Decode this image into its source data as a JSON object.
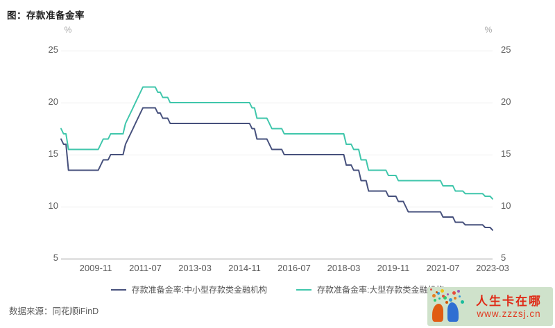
{
  "title": "图：存款准备金率",
  "source": "数据来源：同花顺iFinD",
  "axis": {
    "unit_left": "%",
    "unit_right": "%"
  },
  "colors": {
    "grid": "#ececec",
    "axis_line": "#8c8c8c",
    "tick_text": "#595959",
    "series_small_medium": "#46507c",
    "series_large": "#3fc6ab"
  },
  "legend": [
    {
      "label": "存款准备金率:中小型存款类金融机构",
      "color": "#46507c"
    },
    {
      "label": "存款准备金率:大型存款类金融机构",
      "color": "#3fc6ab"
    }
  ],
  "watermark": {
    "line1": "人生卡在哪",
    "line2": "www.zzzsj.cn",
    "bg_color": "#cfe2cb",
    "text_color": "#df2b17",
    "url_color": "#e13a20",
    "dot_colors": [
      "#e74c3c",
      "#3498db",
      "#2ecc71",
      "#f1c40f",
      "#9b59b6",
      "#e67e22",
      "#1abc9c",
      "#d35400"
    ]
  },
  "chart_data": {
    "type": "line",
    "title": "存款准备金率",
    "xlabel": "",
    "ylabel": "%",
    "ylim": [
      5,
      25
    ],
    "yticks": [
      5,
      10,
      15,
      20,
      25
    ],
    "grid": true,
    "legend_position": "bottom",
    "x_tick_indices": [
      14,
      34,
      54,
      74,
      94,
      114,
      134,
      154,
      174
    ],
    "x_tick_labels": [
      "2009-11",
      "2011-07",
      "2013-03",
      "2014-11",
      "2016-07",
      "2018-03",
      "2019-11",
      "2021-07",
      "2023-03"
    ],
    "categories": [
      "2008-09",
      "2008-10",
      "2008-11",
      "2008-12",
      "2009-01",
      "2009-02",
      "2009-03",
      "2009-04",
      "2009-05",
      "2009-06",
      "2009-07",
      "2009-08",
      "2009-09",
      "2009-10",
      "2009-11",
      "2009-12",
      "2010-01",
      "2010-02",
      "2010-03",
      "2010-04",
      "2010-05",
      "2010-06",
      "2010-07",
      "2010-08",
      "2010-09",
      "2010-10",
      "2010-11",
      "2010-12",
      "2011-01",
      "2011-02",
      "2011-03",
      "2011-04",
      "2011-05",
      "2011-06",
      "2011-07",
      "2011-08",
      "2011-09",
      "2011-10",
      "2011-11",
      "2011-12",
      "2012-01",
      "2012-02",
      "2012-03",
      "2012-04",
      "2012-05",
      "2012-06",
      "2012-07",
      "2012-08",
      "2012-09",
      "2012-10",
      "2012-11",
      "2012-12",
      "2013-01",
      "2013-02",
      "2013-03",
      "2013-04",
      "2013-05",
      "2013-06",
      "2013-07",
      "2013-08",
      "2013-09",
      "2013-10",
      "2013-11",
      "2013-12",
      "2014-01",
      "2014-02",
      "2014-03",
      "2014-04",
      "2014-05",
      "2014-06",
      "2014-07",
      "2014-08",
      "2014-09",
      "2014-10",
      "2014-11",
      "2014-12",
      "2015-01",
      "2015-02",
      "2015-03",
      "2015-04",
      "2015-05",
      "2015-06",
      "2015-07",
      "2015-08",
      "2015-09",
      "2015-10",
      "2015-11",
      "2015-12",
      "2016-01",
      "2016-02",
      "2016-03",
      "2016-04",
      "2016-05",
      "2016-06",
      "2016-07",
      "2016-08",
      "2016-09",
      "2016-10",
      "2016-11",
      "2016-12",
      "2017-01",
      "2017-02",
      "2017-03",
      "2017-04",
      "2017-05",
      "2017-06",
      "2017-07",
      "2017-08",
      "2017-09",
      "2017-10",
      "2017-11",
      "2017-12",
      "2018-01",
      "2018-02",
      "2018-03",
      "2018-04",
      "2018-05",
      "2018-06",
      "2018-07",
      "2018-08",
      "2018-09",
      "2018-10",
      "2018-11",
      "2018-12",
      "2019-01",
      "2019-02",
      "2019-03",
      "2019-04",
      "2019-05",
      "2019-06",
      "2019-07",
      "2019-08",
      "2019-09",
      "2019-10",
      "2019-11",
      "2019-12",
      "2020-01",
      "2020-02",
      "2020-03",
      "2020-04",
      "2020-05",
      "2020-06",
      "2020-07",
      "2020-08",
      "2020-09",
      "2020-10",
      "2020-11",
      "2020-12",
      "2021-01",
      "2021-02",
      "2021-03",
      "2021-04",
      "2021-05",
      "2021-06",
      "2021-07",
      "2021-08",
      "2021-09",
      "2021-10",
      "2021-11",
      "2021-12",
      "2022-01",
      "2022-02",
      "2022-03",
      "2022-04",
      "2022-05",
      "2022-06",
      "2022-07",
      "2022-08",
      "2022-09",
      "2022-10",
      "2022-11",
      "2022-12",
      "2023-01",
      "2023-02",
      "2023-03"
    ],
    "series": [
      {
        "name": "存款准备金率:中小型存款类金融机构",
        "color": "#46507c",
        "values": [
          16.5,
          16,
          16,
          13.5,
          13.5,
          13.5,
          13.5,
          13.5,
          13.5,
          13.5,
          13.5,
          13.5,
          13.5,
          13.5,
          13.5,
          13.5,
          14,
          14.5,
          14.5,
          14.5,
          15,
          15,
          15,
          15,
          15,
          15,
          16,
          16.5,
          17,
          17.5,
          18,
          18.5,
          19,
          19.5,
          19.5,
          19.5,
          19.5,
          19.5,
          19.5,
          19,
          19,
          18.5,
          18.5,
          18.5,
          18,
          18,
          18,
          18,
          18,
          18,
          18,
          18,
          18,
          18,
          18,
          18,
          18,
          18,
          18,
          18,
          18,
          18,
          18,
          18,
          18,
          18,
          18,
          18,
          18,
          18,
          18,
          18,
          18,
          18,
          18,
          18,
          18,
          17.5,
          17.5,
          16.5,
          16.5,
          16.5,
          16.5,
          16.5,
          16,
          15.5,
          15.5,
          15.5,
          15.5,
          15.5,
          15,
          15,
          15,
          15,
          15,
          15,
          15,
          15,
          15,
          15,
          15,
          15,
          15,
          15,
          15,
          15,
          15,
          15,
          15,
          15,
          15,
          15,
          15,
          15,
          15,
          14,
          14,
          14,
          13.5,
          13.5,
          13.5,
          12.5,
          12.5,
          12.5,
          11.5,
          11.5,
          11.5,
          11.5,
          11.5,
          11.5,
          11.5,
          11.5,
          11,
          11,
          11,
          11,
          10.5,
          10.5,
          10.5,
          10,
          9.5,
          9.5,
          9.5,
          9.5,
          9.5,
          9.5,
          9.5,
          9.5,
          9.5,
          9.5,
          9.5,
          9.5,
          9.5,
          9.5,
          9,
          9,
          9,
          9,
          9,
          8.5,
          8.5,
          8.5,
          8.5,
          8.25,
          8.25,
          8.25,
          8.25,
          8.25,
          8.25,
          8.25,
          8.25,
          8,
          8,
          8,
          7.75
        ]
      },
      {
        "name": "存款准备金率:大型存款类金融机构",
        "color": "#3fc6ab",
        "values": [
          17.5,
          17,
          17,
          15.5,
          15.5,
          15.5,
          15.5,
          15.5,
          15.5,
          15.5,
          15.5,
          15.5,
          15.5,
          15.5,
          15.5,
          15.5,
          16,
          16.5,
          16.5,
          16.5,
          17,
          17,
          17,
          17,
          17,
          17,
          18,
          18.5,
          19,
          19.5,
          20,
          20.5,
          21,
          21.5,
          21.5,
          21.5,
          21.5,
          21.5,
          21.5,
          21,
          21,
          20.5,
          20.5,
          20.5,
          20,
          20,
          20,
          20,
          20,
          20,
          20,
          20,
          20,
          20,
          20,
          20,
          20,
          20,
          20,
          20,
          20,
          20,
          20,
          20,
          20,
          20,
          20,
          20,
          20,
          20,
          20,
          20,
          20,
          20,
          20,
          20,
          20,
          19.5,
          19.5,
          18.5,
          18.5,
          18.5,
          18.5,
          18.5,
          18,
          17.5,
          17.5,
          17.5,
          17.5,
          17.5,
          17,
          17,
          17,
          17,
          17,
          17,
          17,
          17,
          17,
          17,
          17,
          17,
          17,
          17,
          17,
          17,
          17,
          17,
          17,
          17,
          17,
          17,
          17,
          17,
          17,
          16,
          16,
          16,
          15.5,
          15.5,
          15.5,
          14.5,
          14.5,
          14.5,
          13.5,
          13.5,
          13.5,
          13.5,
          13.5,
          13.5,
          13.5,
          13.5,
          13,
          13,
          13,
          13,
          12.5,
          12.5,
          12.5,
          12.5,
          12.5,
          12.5,
          12.5,
          12.5,
          12.5,
          12.5,
          12.5,
          12.5,
          12.5,
          12.5,
          12.5,
          12.5,
          12.5,
          12.5,
          12,
          12,
          12,
          12,
          12,
          11.5,
          11.5,
          11.5,
          11.5,
          11.25,
          11.25,
          11.25,
          11.25,
          11.25,
          11.25,
          11.25,
          11.25,
          11,
          11,
          11,
          10.75
        ]
      }
    ]
  }
}
